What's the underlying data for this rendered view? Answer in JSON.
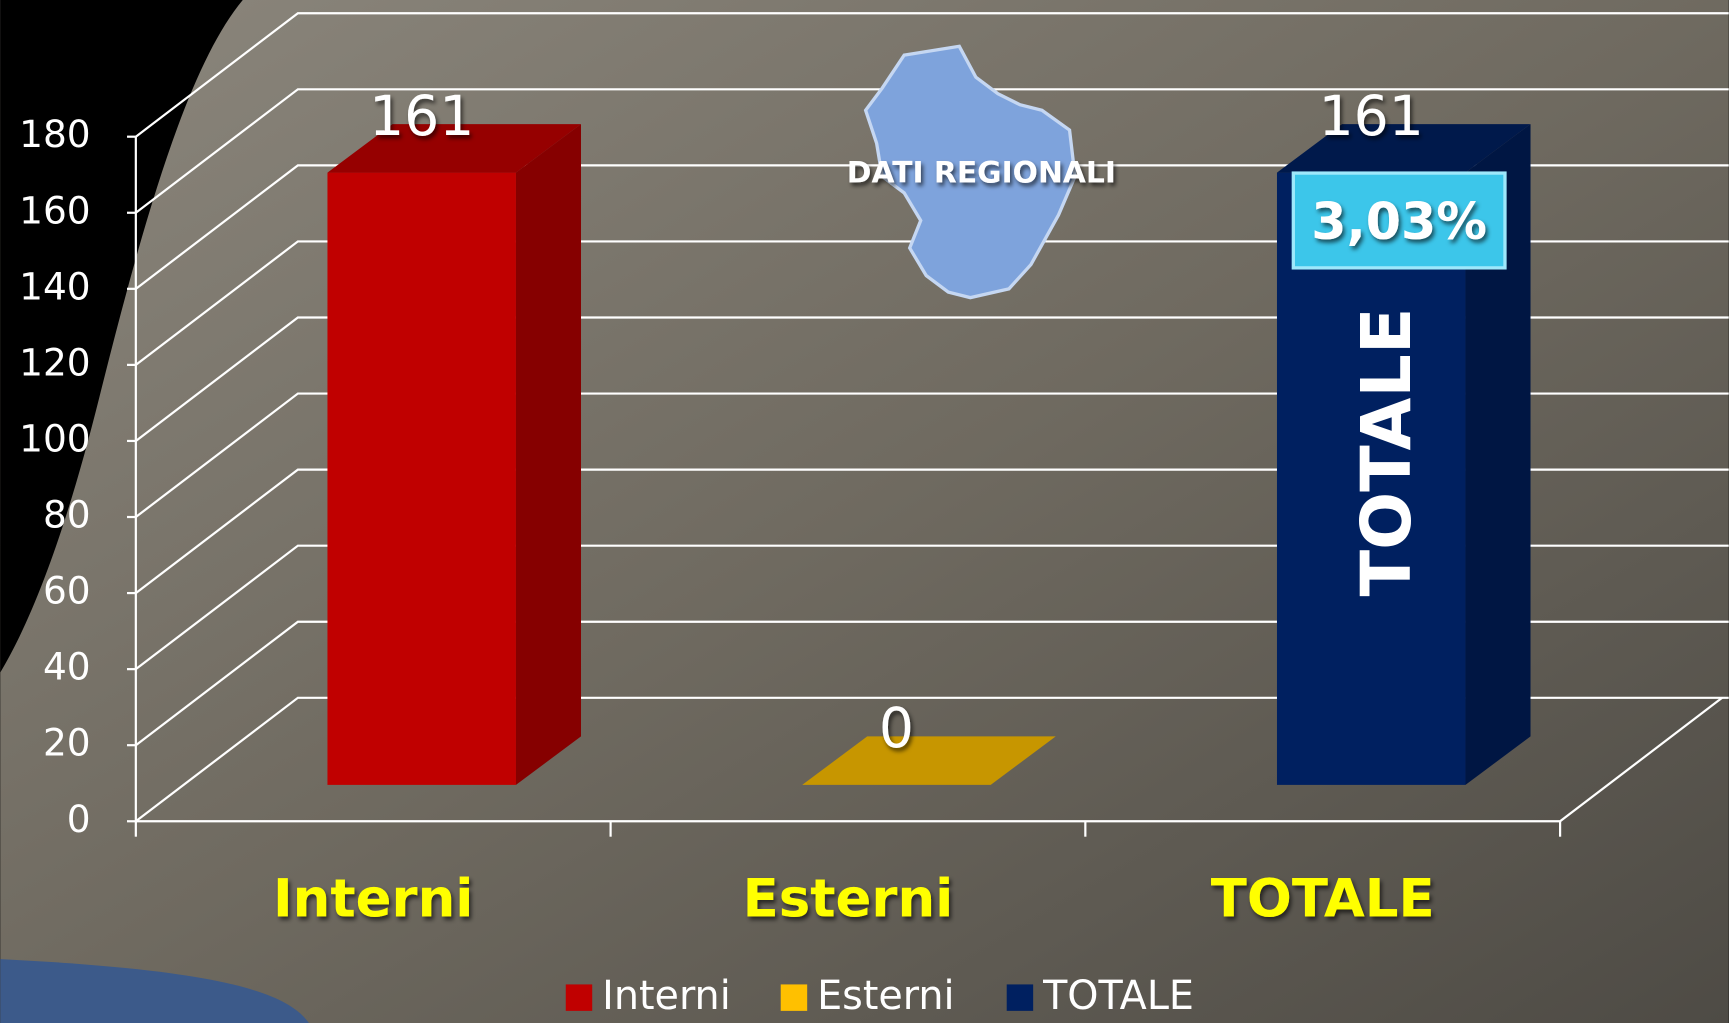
{
  "chart_data": {
    "type": "bar3d",
    "annotations": {
      "region": "DATI REGIONALI",
      "percent": "3,03%",
      "bar_text": "TOTALE"
    },
    "categories": [
      "Interni",
      "Esterni",
      "TOTALE"
    ],
    "values": [
      161,
      0,
      161
    ],
    "colors": [
      "#c00000",
      "#ffc000",
      "#002060"
    ],
    "ylim": [
      0,
      180
    ],
    "yticks": [
      0,
      20,
      40,
      60,
      80,
      100,
      120,
      140,
      160,
      180
    ],
    "grid": true,
    "legend": "bottom"
  }
}
